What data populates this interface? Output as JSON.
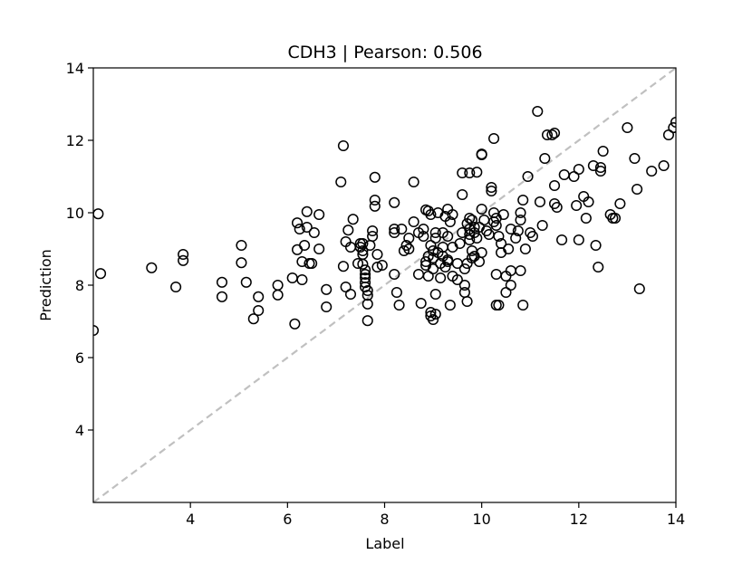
{
  "chart_data": {
    "type": "scatter",
    "title": "CDH3  |  Pearson: 0.506",
    "xlabel": "Label",
    "ylabel": "Prediction",
    "xlim": [
      2.0,
      14.0
    ],
    "ylim": [
      2.0,
      14.0
    ],
    "xticks": [
      4,
      6,
      8,
      10,
      12,
      14
    ],
    "yticks": [
      4,
      6,
      8,
      10,
      12,
      14
    ],
    "grid": false,
    "reference_line": {
      "from": [
        2.0,
        2.0
      ],
      "to": [
        14.0,
        14.0
      ],
      "style": "dashed",
      "color": "#c0c0c0"
    },
    "marker": {
      "shape": "open-circle",
      "color": "#000000"
    },
    "points": [
      [
        2.0,
        6.75
      ],
      [
        2.1,
        9.97
      ],
      [
        2.15,
        8.32
      ],
      [
        3.2,
        8.48
      ],
      [
        3.7,
        7.95
      ],
      [
        3.85,
        8.85
      ],
      [
        3.85,
        8.68
      ],
      [
        4.65,
        8.08
      ],
      [
        4.65,
        7.68
      ],
      [
        5.05,
        9.1
      ],
      [
        5.05,
        8.62
      ],
      [
        5.15,
        8.08
      ],
      [
        5.3,
        7.07
      ],
      [
        5.4,
        7.3
      ],
      [
        5.4,
        7.68
      ],
      [
        5.8,
        8.0
      ],
      [
        5.8,
        7.73
      ],
      [
        6.1,
        8.2
      ],
      [
        6.15,
        6.93
      ],
      [
        6.2,
        9.72
      ],
      [
        6.2,
        8.98
      ],
      [
        6.25,
        9.55
      ],
      [
        6.3,
        8.65
      ],
      [
        6.3,
        8.15
      ],
      [
        6.35,
        9.1
      ],
      [
        6.4,
        10.03
      ],
      [
        6.4,
        9.6
      ],
      [
        6.45,
        8.6
      ],
      [
        6.5,
        8.6
      ],
      [
        6.55,
        9.45
      ],
      [
        6.65,
        9.95
      ],
      [
        6.65,
        9.0
      ],
      [
        6.8,
        7.88
      ],
      [
        6.8,
        7.4
      ],
      [
        7.15,
        11.85
      ],
      [
        7.1,
        10.85
      ],
      [
        7.15,
        8.52
      ],
      [
        7.2,
        9.2
      ],
      [
        7.2,
        7.95
      ],
      [
        7.25,
        9.52
      ],
      [
        7.3,
        7.75
      ],
      [
        7.3,
        9.05
      ],
      [
        7.35,
        9.82
      ],
      [
        7.45,
        8.6
      ],
      [
        7.5,
        9.15
      ],
      [
        7.5,
        9.05
      ],
      [
        7.55,
        9.15
      ],
      [
        7.55,
        8.95
      ],
      [
        7.55,
        8.85
      ],
      [
        7.6,
        8.3
      ],
      [
        7.6,
        8.2
      ],
      [
        7.6,
        8.07
      ],
      [
        7.6,
        7.95
      ],
      [
        7.65,
        7.85
      ],
      [
        7.65,
        7.72
      ],
      [
        7.65,
        7.48
      ],
      [
        7.65,
        7.02
      ],
      [
        7.55,
        8.58
      ],
      [
        7.6,
        8.42
      ],
      [
        7.7,
        9.1
      ],
      [
        7.75,
        9.5
      ],
      [
        7.75,
        9.35
      ],
      [
        7.8,
        10.98
      ],
      [
        7.8,
        10.35
      ],
      [
        7.8,
        10.18
      ],
      [
        7.85,
        8.85
      ],
      [
        7.85,
        8.5
      ],
      [
        7.95,
        8.55
      ],
      [
        8.2,
        10.28
      ],
      [
        8.2,
        9.55
      ],
      [
        8.2,
        9.45
      ],
      [
        8.2,
        8.3
      ],
      [
        8.25,
        7.8
      ],
      [
        8.3,
        7.45
      ],
      [
        8.35,
        9.55
      ],
      [
        8.4,
        8.95
      ],
      [
        8.45,
        9.1
      ],
      [
        8.5,
        9.0
      ],
      [
        8.5,
        9.3
      ],
      [
        8.6,
        10.85
      ],
      [
        8.6,
        9.75
      ],
      [
        8.7,
        9.45
      ],
      [
        8.7,
        8.3
      ],
      [
        8.75,
        7.5
      ],
      [
        8.8,
        9.35
      ],
      [
        8.8,
        9.55
      ],
      [
        8.85,
        10.08
      ],
      [
        8.85,
        8.65
      ],
      [
        8.85,
        8.55
      ],
      [
        8.9,
        10.05
      ],
      [
        8.9,
        8.25
      ],
      [
        8.9,
        8.8
      ],
      [
        8.95,
        7.25
      ],
      [
        8.95,
        7.15
      ],
      [
        9.0,
        7.05
      ],
      [
        8.95,
        9.95
      ],
      [
        8.95,
        9.1
      ],
      [
        9.0,
        8.95
      ],
      [
        9.0,
        8.75
      ],
      [
        9.0,
        8.45
      ],
      [
        9.05,
        7.75
      ],
      [
        9.05,
        9.45
      ],
      [
        9.05,
        9.3
      ],
      [
        9.05,
        7.2
      ],
      [
        9.1,
        10.0
      ],
      [
        9.1,
        8.9
      ],
      [
        9.15,
        8.6
      ],
      [
        9.15,
        8.2
      ],
      [
        9.2,
        9.45
      ],
      [
        9.2,
        9.05
      ],
      [
        9.2,
        8.8
      ],
      [
        9.25,
        9.9
      ],
      [
        9.25,
        8.5
      ],
      [
        9.3,
        10.1
      ],
      [
        9.3,
        8.7
      ],
      [
        9.3,
        8.65
      ],
      [
        9.3,
        9.35
      ],
      [
        9.35,
        9.75
      ],
      [
        9.35,
        7.45
      ],
      [
        9.4,
        9.95
      ],
      [
        9.4,
        9.05
      ],
      [
        9.4,
        8.25
      ],
      [
        9.5,
        8.15
      ],
      [
        9.5,
        8.6
      ],
      [
        9.55,
        9.15
      ],
      [
        9.6,
        11.1
      ],
      [
        9.6,
        10.5
      ],
      [
        9.6,
        9.45
      ],
      [
        9.65,
        8.45
      ],
      [
        9.65,
        8.0
      ],
      [
        9.65,
        7.8
      ],
      [
        9.7,
        9.7
      ],
      [
        9.7,
        8.6
      ],
      [
        9.7,
        7.55
      ],
      [
        9.75,
        11.1
      ],
      [
        9.75,
        9.85
      ],
      [
        9.75,
        9.55
      ],
      [
        9.75,
        9.4
      ],
      [
        9.75,
        9.25
      ],
      [
        9.8,
        9.8
      ],
      [
        9.8,
        8.95
      ],
      [
        9.8,
        8.75
      ],
      [
        9.85,
        9.6
      ],
      [
        9.85,
        9.45
      ],
      [
        9.85,
        8.8
      ],
      [
        9.9,
        11.12
      ],
      [
        9.9,
        9.3
      ],
      [
        9.95,
        8.65
      ],
      [
        9.95,
        9.6
      ],
      [
        10.0,
        11.62
      ],
      [
        10.0,
        11.6
      ],
      [
        10.0,
        8.9
      ],
      [
        10.0,
        10.1
      ],
      [
        10.05,
        9.8
      ],
      [
        10.1,
        9.5
      ],
      [
        10.15,
        9.4
      ],
      [
        10.2,
        10.7
      ],
      [
        10.2,
        10.6
      ],
      [
        10.25,
        12.05
      ],
      [
        10.25,
        10.0
      ],
      [
        10.25,
        9.75
      ],
      [
        10.3,
        9.85
      ],
      [
        10.3,
        9.65
      ],
      [
        10.3,
        7.45
      ],
      [
        10.35,
        7.45
      ],
      [
        10.3,
        8.3
      ],
      [
        10.35,
        9.35
      ],
      [
        10.4,
        9.15
      ],
      [
        10.4,
        8.9
      ],
      [
        10.45,
        9.95
      ],
      [
        10.5,
        7.8
      ],
      [
        10.5,
        8.25
      ],
      [
        10.55,
        9.0
      ],
      [
        10.6,
        8.4
      ],
      [
        10.6,
        8.0
      ],
      [
        10.6,
        9.55
      ],
      [
        10.7,
        9.3
      ],
      [
        10.75,
        9.5
      ],
      [
        10.8,
        10.0
      ],
      [
        10.8,
        9.8
      ],
      [
        10.8,
        8.4
      ],
      [
        10.85,
        10.35
      ],
      [
        10.85,
        7.45
      ],
      [
        10.9,
        9.0
      ],
      [
        10.95,
        11.0
      ],
      [
        11.0,
        9.45
      ],
      [
        11.05,
        9.35
      ],
      [
        11.15,
        12.8
      ],
      [
        11.2,
        10.3
      ],
      [
        11.25,
        9.65
      ],
      [
        11.3,
        11.5
      ],
      [
        11.35,
        12.15
      ],
      [
        11.45,
        12.15
      ],
      [
        11.5,
        12.2
      ],
      [
        11.5,
        10.75
      ],
      [
        11.5,
        10.25
      ],
      [
        11.55,
        10.15
      ],
      [
        11.65,
        9.25
      ],
      [
        11.7,
        11.05
      ],
      [
        11.9,
        11.0
      ],
      [
        11.95,
        10.2
      ],
      [
        12.0,
        11.2
      ],
      [
        12.0,
        9.25
      ],
      [
        12.1,
        10.45
      ],
      [
        12.15,
        9.85
      ],
      [
        12.2,
        10.3
      ],
      [
        12.3,
        11.3
      ],
      [
        12.35,
        9.1
      ],
      [
        12.4,
        8.5
      ],
      [
        12.45,
        11.25
      ],
      [
        12.45,
        11.15
      ],
      [
        12.5,
        11.7
      ],
      [
        12.65,
        9.95
      ],
      [
        12.7,
        9.85
      ],
      [
        12.75,
        9.85
      ],
      [
        12.85,
        10.25
      ],
      [
        13.0,
        12.35
      ],
      [
        13.15,
        11.5
      ],
      [
        13.2,
        10.65
      ],
      [
        13.25,
        7.9
      ],
      [
        13.5,
        11.15
      ],
      [
        13.75,
        11.3
      ],
      [
        13.85,
        12.15
      ],
      [
        13.95,
        12.35
      ],
      [
        14.0,
        12.5
      ]
    ]
  }
}
